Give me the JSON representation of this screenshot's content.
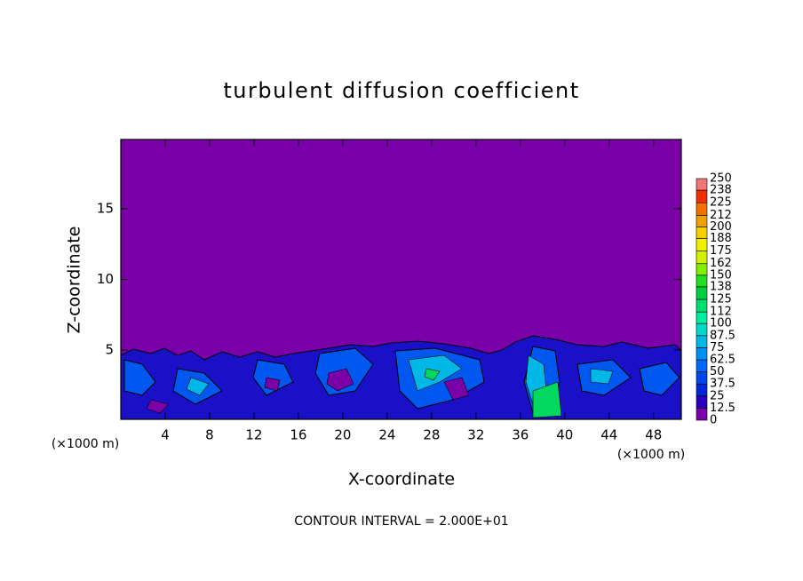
{
  "chart_data": {
    "type": "contour",
    "title": "turbulent diffusion coefficient",
    "xlabel": "X-coordinate",
    "ylabel": "Z-coordinate",
    "x_unit_left": "(×1000 m)",
    "x_unit_right": "(×1000 m)",
    "footnote": "CONTOUR INTERVAL = 2.000E+01",
    "xlim": [
      0,
      50.5
    ],
    "xticks": [
      4,
      8,
      12,
      16,
      20,
      24,
      28,
      32,
      36,
      40,
      44,
      48
    ],
    "ylim": [
      0.1,
      19.9
    ],
    "yticks": [
      5,
      10,
      15
    ],
    "background_color": "#7a00a8",
    "levels": [
      0,
      12.5,
      25,
      37.5,
      50,
      62.5,
      75,
      87.5,
      100,
      112,
      125,
      138,
      150,
      162,
      175,
      188,
      200,
      212,
      225,
      238,
      250
    ],
    "level_colors": [
      "#7a00a8",
      "#2a00c0",
      "#0028d8",
      "#0048ec",
      "#0068f8",
      "#0090f4",
      "#00b8e8",
      "#00d8c8",
      "#00eca0",
      "#00e070",
      "#00d040",
      "#20e020",
      "#80f000",
      "#d0f000",
      "#f0f000",
      "#f8d000",
      "#f0a000",
      "#f07000",
      "#f03000",
      "#f07878"
    ]
  }
}
